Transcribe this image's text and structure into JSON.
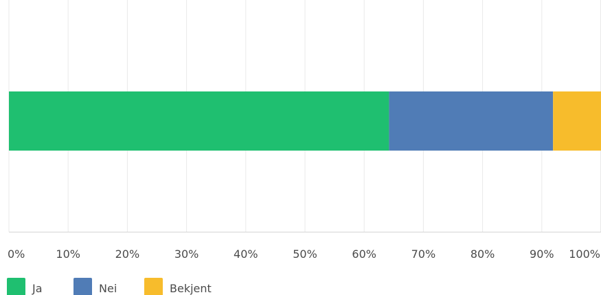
{
  "chart_data": {
    "type": "bar",
    "orientation": "horizontal",
    "stacked": true,
    "percent_scale": true,
    "categories": [
      ""
    ],
    "series": [
      {
        "name": "Ja",
        "values": [
          64.2
        ],
        "color": "#1fbf70"
      },
      {
        "name": "Nei",
        "values": [
          27.7
        ],
        "color": "#507cb6"
      },
      {
        "name": "Bekjent",
        "values": [
          8.1
        ],
        "color": "#f7bc2c"
      }
    ],
    "xlim": [
      0,
      100
    ],
    "x_ticks": [
      "0%",
      "10%",
      "20%",
      "30%",
      "40%",
      "50%",
      "60%",
      "70%",
      "80%",
      "90%",
      "100%"
    ],
    "grid": true,
    "legend": "bottom-left",
    "title": "",
    "xlabel": "",
    "ylabel": ""
  }
}
